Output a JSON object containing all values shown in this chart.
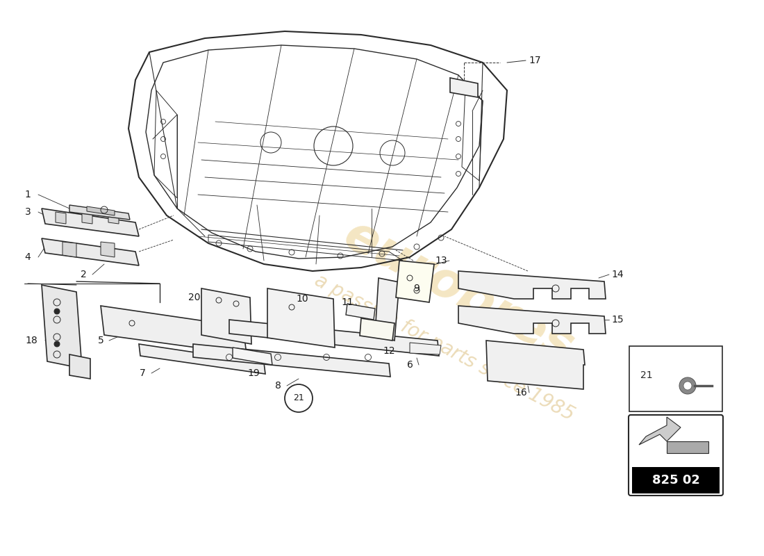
{
  "bg_color": "#ffffff",
  "line_color": "#2a2a2a",
  "watermark_color_1": "#e8c87a",
  "watermark_color_2": "#d4b060",
  "part_number_text": "825 02"
}
